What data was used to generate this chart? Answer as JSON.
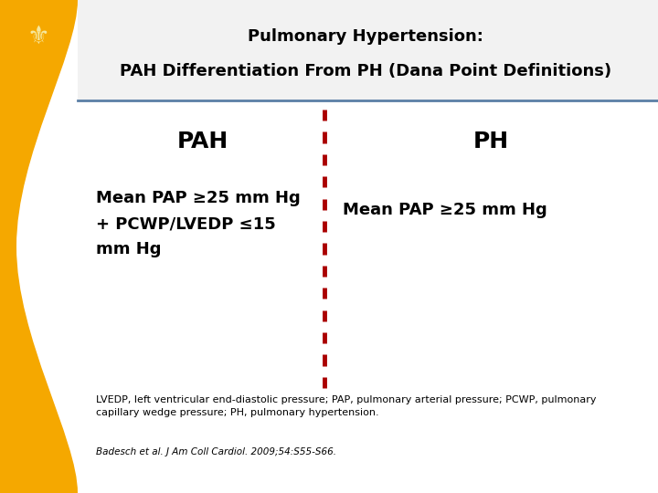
{
  "title_line1": "Pulmonary Hypertension:",
  "title_line2": "PAH Differentiation From PH (Dana Point Definitions)",
  "title_fontsize": 13,
  "title_color": "#000000",
  "bg_color": "#ffffff",
  "left_header": "PAH",
  "right_header": "PH",
  "left_body": "Mean PAP ≥25 mm Hg\n+ PCWP/LVEDP ≤15\nmm Hg",
  "right_body": "Mean PAP ≥25 mm Hg",
  "header_fontsize": 18,
  "body_fontsize": 13,
  "divider_color": "#aa0000",
  "header_underline_color": "#5b7fa6",
  "gold_color": "#f5a800",
  "wreath_color": "#f5e8a0",
  "footer_text": "LVEDP, left ventricular end-diastolic pressure; PAP, pulmonary arterial pressure; PCWP, pulmonary\ncapillary wedge pressure; PH, pulmonary hypertension.",
  "citation_text": "Badesch et al. J Am Coll Cardiol. 2009;54:S55-S66.",
  "footer_fontsize": 8,
  "citation_fontsize": 7.5
}
